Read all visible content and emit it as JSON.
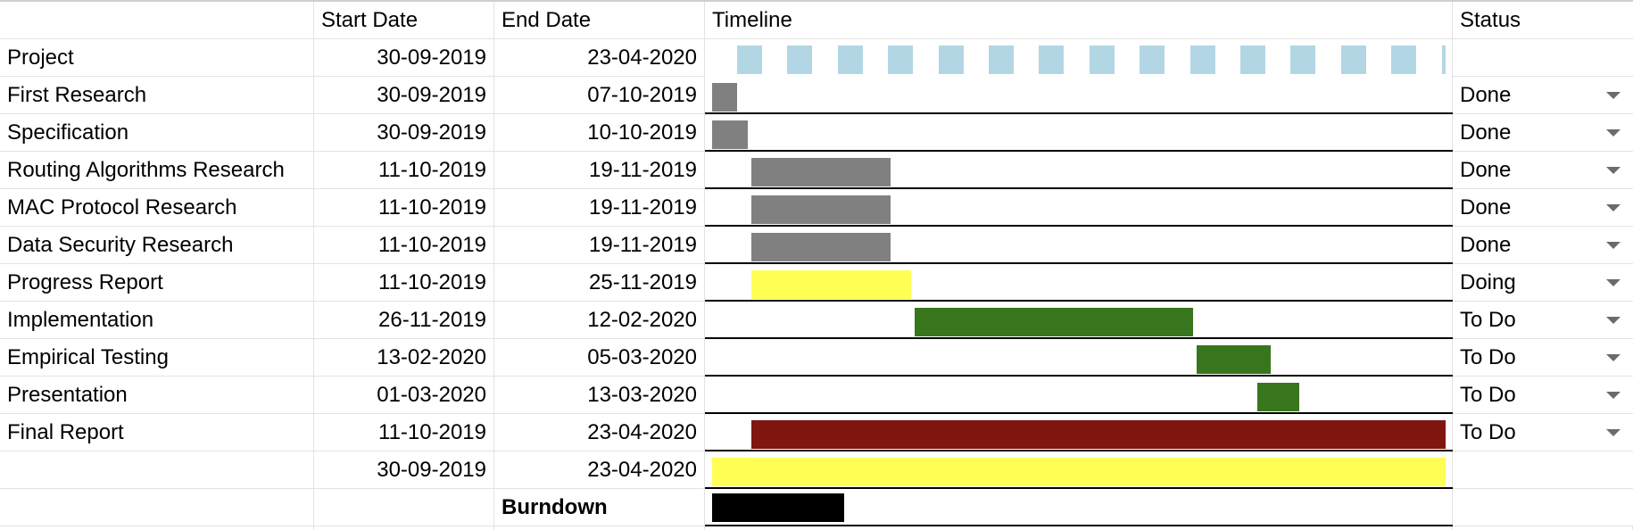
{
  "headers": {
    "name": "",
    "start": "Start Date",
    "end": "End Date",
    "timeline": "Timeline",
    "status": "Status"
  },
  "timeline": {
    "start": "30-09-2019",
    "end": "23-04-2020"
  },
  "colors": {
    "project": "#b3d6e5",
    "done": "#808080",
    "doing": "#ffff55",
    "todo": "#38761d",
    "final": "#7f1710",
    "total": "#ffff55",
    "burndown": "#000000"
  },
  "tasks": [
    {
      "name": "Project",
      "start": "30-09-2019",
      "end": "23-04-2020",
      "status": "",
      "kind": "project"
    },
    {
      "name": "First Research",
      "start": "30-09-2019",
      "end": "07-10-2019",
      "status": "Done",
      "kind": "done"
    },
    {
      "name": "Specification",
      "start": "30-09-2019",
      "end": "10-10-2019",
      "status": "Done",
      "kind": "done"
    },
    {
      "name": "Routing Algorithms Research",
      "start": "11-10-2019",
      "end": "19-11-2019",
      "status": "Done",
      "kind": "done"
    },
    {
      "name": "MAC Protocol Research",
      "start": "11-10-2019",
      "end": "19-11-2019",
      "status": "Done",
      "kind": "done"
    },
    {
      "name": "Data Security Research",
      "start": "11-10-2019",
      "end": "19-11-2019",
      "status": "Done",
      "kind": "done"
    },
    {
      "name": "Progress Report",
      "start": "11-10-2019",
      "end": "25-11-2019",
      "status": "Doing",
      "kind": "doing"
    },
    {
      "name": "Implementation",
      "start": "26-11-2019",
      "end": "12-02-2020",
      "status": "To Do",
      "kind": "todo"
    },
    {
      "name": "Empirical Testing",
      "start": "13-02-2020",
      "end": "05-03-2020",
      "status": "To Do",
      "kind": "todo"
    },
    {
      "name": "Presentation",
      "start": "01-03-2020",
      "end": "13-03-2020",
      "status": "To Do",
      "kind": "todo"
    },
    {
      "name": "Final Report",
      "start": "11-10-2019",
      "end": "23-04-2020",
      "status": "To Do",
      "kind": "final"
    },
    {
      "name": "",
      "start": "30-09-2019",
      "end": "23-04-2020",
      "status": "",
      "kind": "total"
    }
  ],
  "burndown": {
    "label": "Burndown",
    "progress": 0.18
  }
}
